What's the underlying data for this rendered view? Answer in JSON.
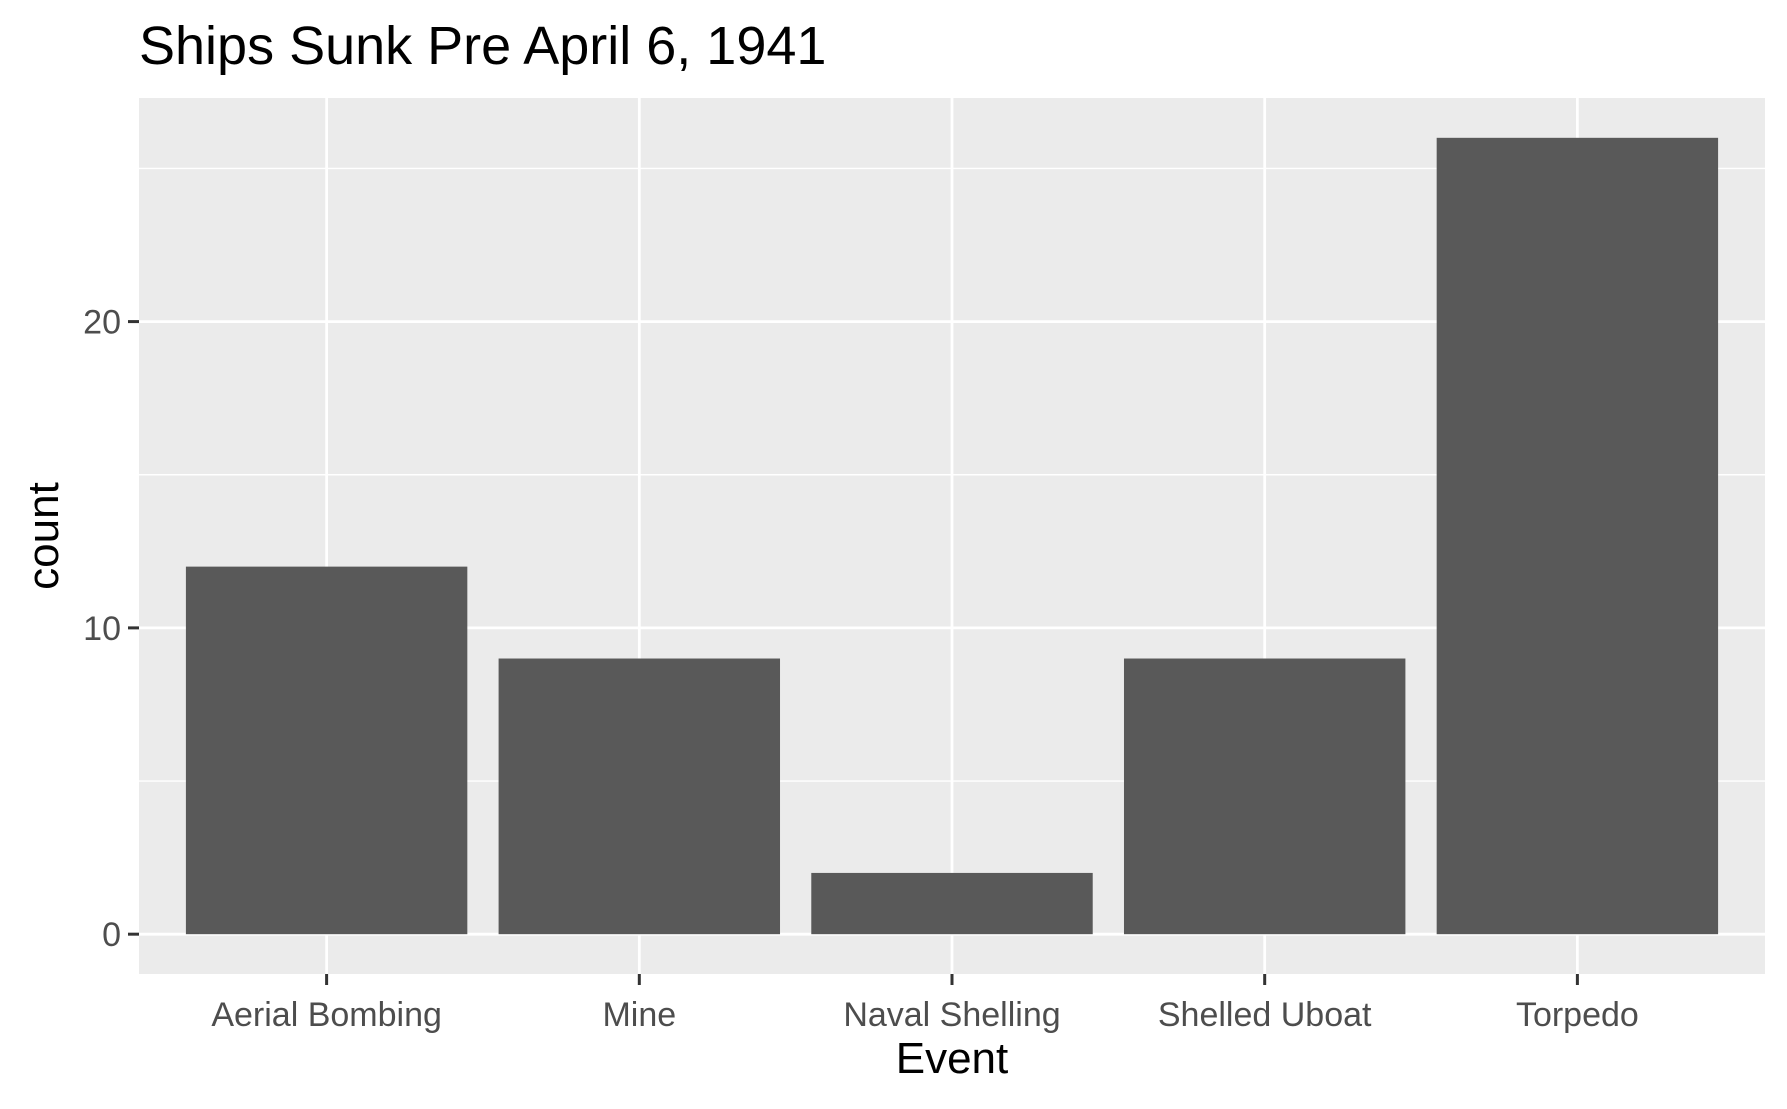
{
  "chart_data": {
    "type": "bar",
    "title": "Ships Sunk Pre April 6, 1941",
    "xlabel": "Event",
    "ylabel": "count",
    "categories": [
      "Aerial Bombing",
      "Mine",
      "Naval Shelling",
      "Shelled Uboat",
      "Torpedo"
    ],
    "values": [
      12,
      9,
      2,
      9,
      26
    ],
    "ylim": [
      -1.3,
      27.3
    ],
    "yticks": [
      0,
      10,
      20
    ],
    "ytick_labels": [
      "0",
      "10",
      "20"
    ],
    "y_minor_gridlines": [
      5,
      15,
      25
    ],
    "grid": true,
    "legend": "none",
    "colors": {
      "panel_background": "#ebebeb",
      "bar_fill": "#595959",
      "gridline": "#ffffff",
      "tick_label": "#4d4d4d",
      "axis_tick": "#333333"
    }
  }
}
